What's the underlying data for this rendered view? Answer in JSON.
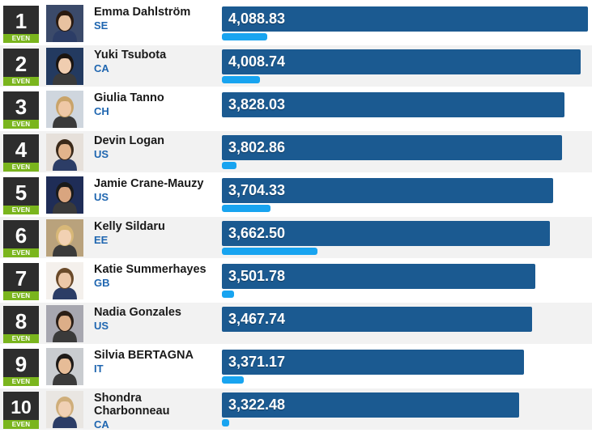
{
  "colors": {
    "rank_bg": "#2d2d2d",
    "trend_bg": "#7ab51d",
    "bar": "#1b5a91",
    "subbar": "#18a4f0",
    "country": "#1f66b0",
    "alt_row": "#f2f2f2"
  },
  "max_score": 4088.83,
  "rows": [
    {
      "rank": "1",
      "trend": "EVEN",
      "name": "Emma Dahlström",
      "country": "SE",
      "score": "4,088.83",
      "value": 4088.83,
      "sub_pct": 0.123,
      "avatar_icon": "athlete-photo-icon"
    },
    {
      "rank": "2",
      "trend": "EVEN",
      "name": "Yuki Tsubota",
      "country": "CA",
      "score": "4,008.74",
      "value": 4008.74,
      "sub_pct": 0.103,
      "avatar_icon": "athlete-photo-icon"
    },
    {
      "rank": "3",
      "trend": "EVEN",
      "name": "Giulia Tanno",
      "country": "CH",
      "score": "3,828.03",
      "value": 3828.03,
      "sub_pct": 0.0,
      "avatar_icon": "athlete-photo-icon"
    },
    {
      "rank": "4",
      "trend": "EVEN",
      "name": "Devin Logan",
      "country": "US",
      "score": "3,802.86",
      "value": 3802.86,
      "sub_pct": 0.04,
      "avatar_icon": "athlete-photo-icon"
    },
    {
      "rank": "5",
      "trend": "EVEN",
      "name": "Jamie Crane-Mauzy",
      "country": "US",
      "score": "3,704.33",
      "value": 3704.33,
      "sub_pct": 0.132,
      "avatar_icon": "athlete-photo-icon"
    },
    {
      "rank": "6",
      "trend": "EVEN",
      "name": "Kelly Sildaru",
      "country": "EE",
      "score": "3,662.50",
      "value": 3662.5,
      "sub_pct": 0.262,
      "avatar_icon": "athlete-photo-icon"
    },
    {
      "rank": "7",
      "trend": "EVEN",
      "name": "Katie Summerhayes",
      "country": "GB",
      "score": "3,501.78",
      "value": 3501.78,
      "sub_pct": 0.033,
      "avatar_icon": "athlete-photo-icon"
    },
    {
      "rank": "8",
      "trend": "EVEN",
      "name": "Nadia Gonzales",
      "country": "US",
      "score": "3,467.74",
      "value": 3467.74,
      "sub_pct": 0.0,
      "avatar_icon": "athlete-photo-icon"
    },
    {
      "rank": "9",
      "trend": "EVEN",
      "name": "Silvia BERTAGNA",
      "country": "IT",
      "score": "3,371.17",
      "value": 3371.17,
      "sub_pct": 0.06,
      "avatar_icon": "athlete-photo-icon"
    },
    {
      "rank": "10",
      "trend": "EVEN",
      "name": "Shondra Charbonneau",
      "country": "CA",
      "score": "3,322.48",
      "value": 3322.48,
      "sub_pct": 0.02,
      "avatar_icon": "athlete-photo-icon"
    }
  ]
}
